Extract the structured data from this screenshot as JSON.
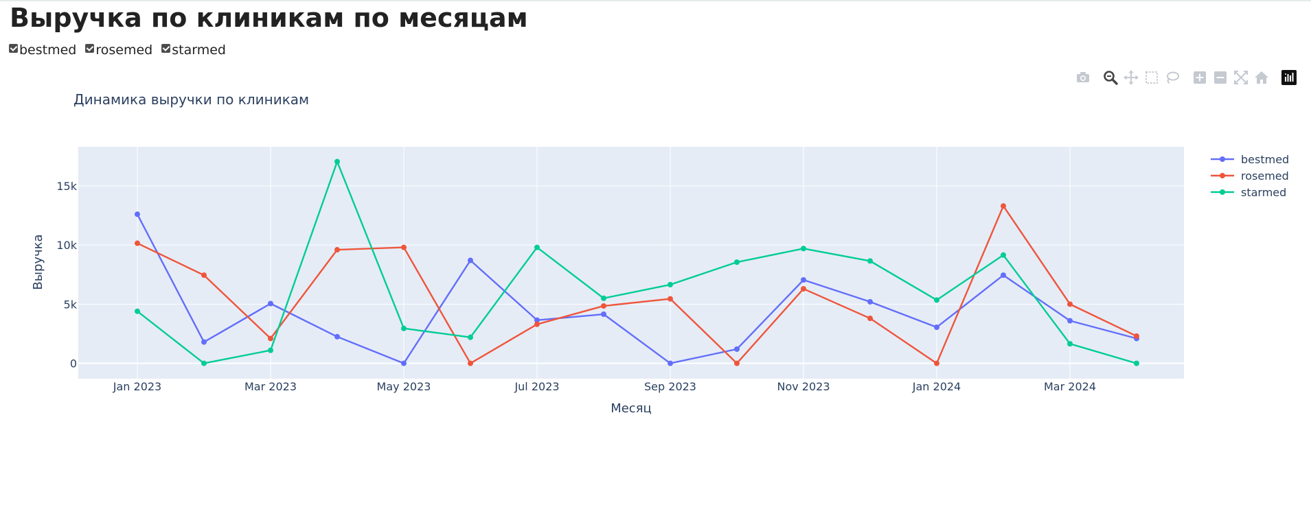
{
  "page": {
    "title": "Выручка по клиникам по месяцам"
  },
  "filters": [
    {
      "label": "bestmed",
      "checked": true
    },
    {
      "label": "rosemed",
      "checked": true
    },
    {
      "label": "starmed",
      "checked": true
    }
  ],
  "modebar": {
    "buttons": [
      {
        "icon": "camera-icon",
        "title": "Download plot as a png"
      },
      {
        "icon": "zoom-icon",
        "title": "Zoom"
      },
      {
        "icon": "pan-icon",
        "title": "Pan"
      },
      {
        "icon": "box-select-icon",
        "title": "Box Select"
      },
      {
        "icon": "lasso-select-icon",
        "title": "Lasso Select"
      },
      {
        "icon": "zoom-in-icon",
        "title": "Zoom in"
      },
      {
        "icon": "zoom-out-icon",
        "title": "Zoom out"
      },
      {
        "icon": "autoscale-icon",
        "title": "Autoscale"
      },
      {
        "icon": "home-icon",
        "title": "Reset axes"
      },
      {
        "icon": "plotly-logo-icon",
        "title": "Produced with Plotly"
      }
    ]
  },
  "chart_data": {
    "type": "line",
    "title": "Динамика выручки по клиникам",
    "xlabel": "Месяц",
    "ylabel": "Выручка",
    "x": [
      "2023-01",
      "2023-02",
      "2023-03",
      "2023-04",
      "2023-05",
      "2023-06",
      "2023-07",
      "2023-08",
      "2023-09",
      "2023-10",
      "2023-11",
      "2023-12",
      "2024-01",
      "2024-02",
      "2024-03",
      "2024-04"
    ],
    "x_ticks": [
      "Jan 2023",
      "Mar 2023",
      "May 2023",
      "Jul 2023",
      "Sep 2023",
      "Nov 2023",
      "Jan 2024",
      "Mar 2024"
    ],
    "y_ticks": [
      "0",
      "5k",
      "10k",
      "15k"
    ],
    "ylim": [
      -1300,
      18300
    ],
    "grid": true,
    "legend_position": "top-right",
    "colors": {
      "plot_bg": "#e5ecf6",
      "grid": "#ffffff",
      "text": "#2a3f5f",
      "title": "#2a3f5f"
    },
    "series": [
      {
        "name": "bestmed",
        "color": "#636efa",
        "values": [
          12600,
          1800,
          5050,
          2250,
          0,
          8700,
          3650,
          4150,
          0,
          1200,
          7050,
          5200,
          3050,
          7450,
          3600,
          2100
        ]
      },
      {
        "name": "rosemed",
        "color": "#ef553b",
        "values": [
          10150,
          7450,
          2100,
          9600,
          9800,
          0,
          3300,
          4850,
          5450,
          0,
          6300,
          3800,
          0,
          13300,
          5000,
          2300
        ]
      },
      {
        "name": "starmed",
        "color": "#00cc96",
        "values": [
          4400,
          0,
          1100,
          17050,
          2950,
          2200,
          9800,
          5500,
          6650,
          8550,
          9700,
          8650,
          5350,
          9150,
          1650,
          0
        ]
      }
    ]
  }
}
